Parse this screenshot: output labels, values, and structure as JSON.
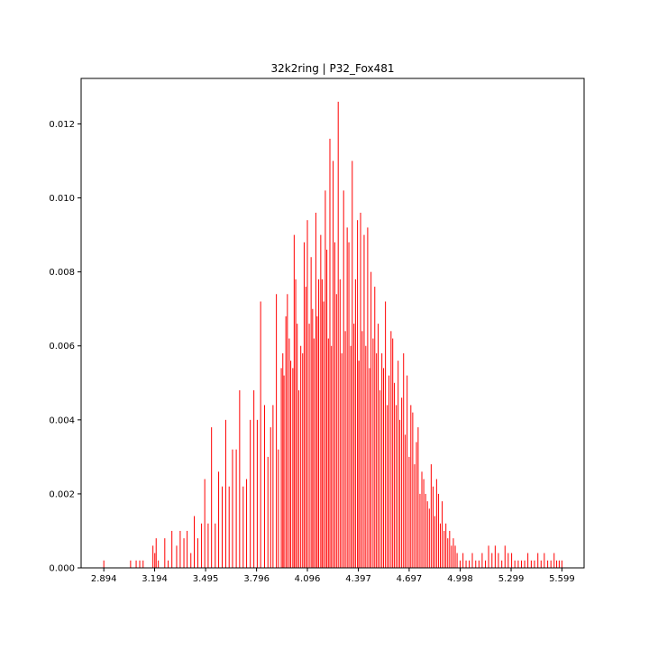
{
  "chart_data": {
    "type": "bar",
    "title": "32k2ring | P32_Fox481",
    "xlabel": "",
    "ylabel": "",
    "bar_color": "#ff0000",
    "grid": false,
    "legend": "none",
    "xlim": [
      2.76,
      5.73
    ],
    "ylim": [
      0,
      0.01323
    ],
    "xticks": [
      2.894,
      3.194,
      3.495,
      3.796,
      4.096,
      4.397,
      4.697,
      4.998,
      5.299,
      5.599
    ],
    "xtick_labels": [
      "2.894",
      "3.194",
      "3.495",
      "3.796",
      "4.096",
      "4.397",
      "4.697",
      "4.998",
      "5.299",
      "5.599"
    ],
    "yticks": [
      0.0,
      0.002,
      0.004,
      0.006,
      0.008,
      0.01,
      0.012
    ],
    "ytick_labels": [
      "0.000",
      "0.002",
      "0.004",
      "0.006",
      "0.008",
      "0.010",
      "0.012"
    ],
    "x": [
      2.894,
      3.052,
      3.085,
      3.106,
      3.126,
      3.184,
      3.195,
      3.203,
      3.216,
      3.254,
      3.274,
      3.296,
      3.324,
      3.345,
      3.367,
      3.386,
      3.408,
      3.428,
      3.449,
      3.471,
      3.49,
      3.51,
      3.53,
      3.552,
      3.572,
      3.593,
      3.614,
      3.634,
      3.654,
      3.676,
      3.696,
      3.717,
      3.737,
      3.759,
      3.78,
      3.8,
      3.82,
      3.843,
      3.863,
      3.879,
      3.893,
      3.913,
      3.925,
      3.942,
      3.951,
      3.958,
      3.969,
      3.978,
      3.989,
      3.998,
      4.01,
      4.018,
      4.027,
      4.036,
      4.046,
      4.057,
      4.068,
      4.077,
      4.087,
      4.096,
      4.107,
      4.118,
      4.127,
      4.135,
      4.146,
      4.154,
      4.163,
      4.175,
      4.183,
      4.192,
      4.202,
      4.211,
      4.22,
      4.229,
      4.238,
      4.248,
      4.258,
      4.268,
      4.278,
      4.289,
      4.299,
      4.31,
      4.32,
      4.331,
      4.341,
      4.352,
      4.361,
      4.371,
      4.38,
      4.392,
      4.4,
      4.41,
      4.42,
      4.431,
      4.441,
      4.452,
      4.463,
      4.472,
      4.484,
      4.494,
      4.504,
      4.514,
      4.525,
      4.536,
      4.546,
      4.557,
      4.568,
      4.578,
      4.59,
      4.6,
      4.61,
      4.621,
      4.632,
      4.642,
      4.653,
      4.664,
      4.674,
      4.685,
      4.697,
      4.707,
      4.718,
      4.729,
      4.74,
      4.75,
      4.761,
      4.772,
      4.783,
      4.794,
      4.805,
      4.816,
      4.827,
      4.838,
      4.848,
      4.859,
      4.87,
      4.881,
      4.892,
      4.904,
      4.914,
      4.925,
      4.936,
      4.947,
      4.958,
      4.969,
      4.98,
      4.998,
      5.015,
      5.033,
      5.052,
      5.07,
      5.09,
      5.109,
      5.128,
      5.147,
      5.166,
      5.186,
      5.205,
      5.224,
      5.244,
      5.263,
      5.282,
      5.302,
      5.321,
      5.341,
      5.36,
      5.379,
      5.398,
      5.418,
      5.437,
      5.457,
      5.476,
      5.495,
      5.515,
      5.534,
      5.553,
      5.568,
      5.583,
      5.599
    ],
    "values": [
      0.0002,
      0.0002,
      0.0002,
      0.0002,
      0.0002,
      0.0006,
      0.0004,
      0.0008,
      0.0002,
      0.0008,
      0.0002,
      0.001,
      0.0006,
      0.001,
      0.0008,
      0.001,
      0.0004,
      0.0014,
      0.0008,
      0.0012,
      0.0024,
      0.0012,
      0.0038,
      0.0012,
      0.0026,
      0.0022,
      0.004,
      0.0022,
      0.0032,
      0.0032,
      0.0048,
      0.0022,
      0.0024,
      0.004,
      0.0048,
      0.004,
      0.0072,
      0.0044,
      0.003,
      0.0038,
      0.0044,
      0.0074,
      0.0032,
      0.0054,
      0.0058,
      0.0052,
      0.0068,
      0.0074,
      0.0062,
      0.0056,
      0.0054,
      0.009,
      0.0078,
      0.0066,
      0.0048,
      0.006,
      0.0058,
      0.0088,
      0.0076,
      0.0094,
      0.0066,
      0.0084,
      0.007,
      0.0062,
      0.0096,
      0.0068,
      0.0078,
      0.009,
      0.0078,
      0.0072,
      0.0102,
      0.0086,
      0.0062,
      0.0116,
      0.006,
      0.011,
      0.0088,
      0.0074,
      0.0126,
      0.0078,
      0.0058,
      0.0102,
      0.0064,
      0.0092,
      0.0088,
      0.006,
      0.011,
      0.0066,
      0.0078,
      0.0094,
      0.0056,
      0.0096,
      0.0064,
      0.009,
      0.006,
      0.0092,
      0.0054,
      0.008,
      0.0062,
      0.0076,
      0.0058,
      0.0066,
      0.0048,
      0.0058,
      0.0054,
      0.0072,
      0.0044,
      0.0052,
      0.0064,
      0.0062,
      0.005,
      0.0044,
      0.0056,
      0.004,
      0.0046,
      0.0058,
      0.0036,
      0.0052,
      0.003,
      0.0044,
      0.0042,
      0.0028,
      0.0034,
      0.0038,
      0.002,
      0.0026,
      0.0024,
      0.002,
      0.0018,
      0.0016,
      0.0028,
      0.0022,
      0.0014,
      0.0024,
      0.002,
      0.0012,
      0.0018,
      0.001,
      0.0012,
      0.0008,
      0.001,
      0.0006,
      0.0008,
      0.0006,
      0.0004,
      0.0002,
      0.0004,
      0.0002,
      0.0002,
      0.0004,
      0.0002,
      0.0002,
      0.0004,
      0.0002,
      0.0006,
      0.0004,
      0.0006,
      0.0004,
      0.0002,
      0.0006,
      0.0004,
      0.0004,
      0.0002,
      0.0002,
      0.0002,
      0.0002,
      0.0004,
      0.0002,
      0.0002,
      0.0004,
      0.0002,
      0.0004,
      0.0002,
      0.0002,
      0.0004,
      0.0002,
      0.0002,
      0.0002
    ]
  }
}
